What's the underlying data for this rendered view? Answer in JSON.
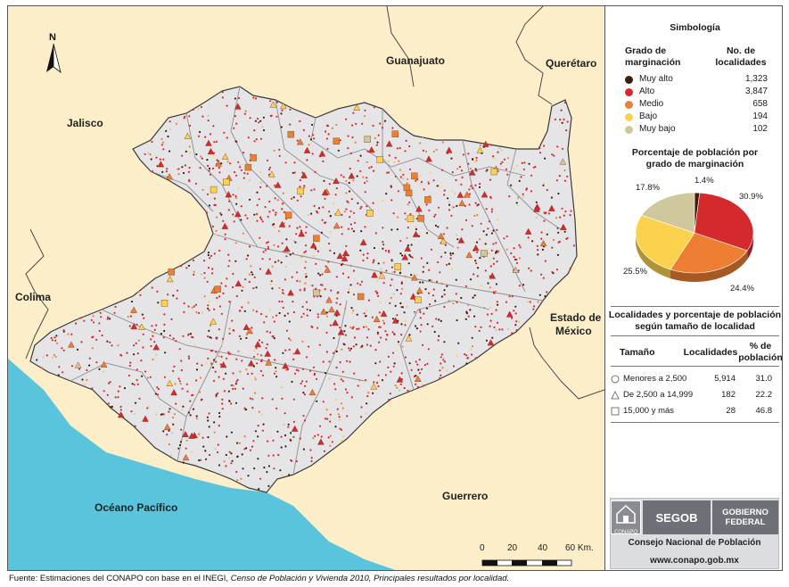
{
  "map": {
    "states": {
      "guanajuato": "Guanajuato",
      "queretaro": "Querétaro",
      "jalisco": "Jalisco",
      "colima": "Colima",
      "estado_mexico_line1": "Estado de",
      "estado_mexico_line2": "México",
      "guerrero": "Guerrero",
      "oceano": "Océano Pacífico"
    },
    "north_label": "N",
    "scale": {
      "ticks": [
        "0",
        "20",
        "40",
        "60 Km."
      ]
    },
    "colors": {
      "land": "#fbeec8",
      "state": "#e5e5e7",
      "ocean": "#5bc4dd",
      "muy_alto": "#3d1e0c",
      "alto": "#d42a2e",
      "medio": "#ee7f32",
      "bajo": "#fbd24d",
      "muy_bajo": "#d1c79c"
    }
  },
  "legend": {
    "title": "Simbología",
    "col_grado_line1": "Grado de",
    "col_grado_line2": "marginación",
    "col_no_line1": "No. de",
    "col_no_line2": "localidades",
    "classes": [
      {
        "label": "Muy alto",
        "count": "1,323",
        "color": "#3d1e0c"
      },
      {
        "label": "Alto",
        "count": "3,847",
        "color": "#d42a2e"
      },
      {
        "label": "Medio",
        "count": "658",
        "color": "#ee7f32"
      },
      {
        "label": "Bajo",
        "count": "194",
        "color": "#fbd24d"
      },
      {
        "label": "Muy bajo",
        "count": "102",
        "color": "#d1c79c"
      }
    ]
  },
  "pie": {
    "title_line1": "Porcentaje de población por",
    "title_line2": "grado de marginación",
    "slices": [
      {
        "class": "Muy alto",
        "value": 1.4,
        "label": "1.4%",
        "color": "#3d1e0c"
      },
      {
        "class": "Alto",
        "value": 30.9,
        "label": "30.9%",
        "color": "#d42a2e"
      },
      {
        "class": "Medio",
        "value": 24.4,
        "label": "24.4%",
        "color": "#ee7f32"
      },
      {
        "class": "Bajo",
        "value": 25.5,
        "label": "25.5%",
        "color": "#fbd24d"
      },
      {
        "class": "Muy bajo",
        "value": 17.8,
        "label": "17.8%",
        "color": "#d1c79c"
      }
    ]
  },
  "size_table": {
    "title_line1": "Localidades y porcentaje de población",
    "title_line2": "según tamaño de localidad",
    "col_tamano": "Tamaño",
    "col_localidades": "Localidades",
    "col_pct_line1": "% de",
    "col_pct_line2": "población",
    "rows": [
      {
        "symbol": "circle",
        "label": "Menores a 2,500",
        "localidades": "5,914",
        "pct": "31.0"
      },
      {
        "symbol": "triangle",
        "label": "De 2,500 a 14,999",
        "localidades": "182",
        "pct": "22.2"
      },
      {
        "symbol": "square",
        "label": "15,000 y más",
        "localidades": "28",
        "pct": "46.8"
      }
    ]
  },
  "logos": {
    "conapo": "CONAPO",
    "segob": "SEGOB",
    "gobierno_line1": "Gobierno",
    "gobierno_line2": "Federal",
    "consejo": "Consejo Nacional de Población",
    "url": "www.conapo.gob.mx"
  },
  "source": {
    "prefix": "Fuente: Estimaciones del CONAPO con base en el INEGI, ",
    "italic": "Censo de Población y Vivienda 2010, Principales resultados por localidad."
  }
}
